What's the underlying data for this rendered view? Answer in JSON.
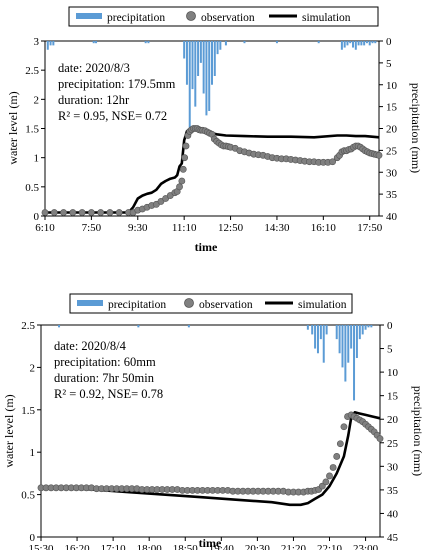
{
  "charts": [
    {
      "type": "line",
      "legend": [
        "precipitation",
        "observation",
        "simulation"
      ],
      "xlabel": "time",
      "ylabel_left": "water level (m)",
      "ylabel_right": "precipitation (mm)",
      "x_tick_labels": [
        "6:10",
        "7:50",
        "9:30",
        "11:10",
        "12:50",
        "14:30",
        "16:10",
        "17:50"
      ],
      "y_left_ticks": [
        "0",
        "0.5",
        "1",
        "1.5",
        "2",
        "2.5",
        "3"
      ],
      "y_right_ticks": [
        "0",
        "5",
        "10",
        "15",
        "20",
        "25",
        "30",
        "35",
        "40"
      ],
      "annotation": {
        "date": "date: 2020/8/3",
        "precipitation": "precipitation: 179.5mm",
        "duration": "duration: 12hr",
        "metrics": "R² = 0.95, NSE= 0.72"
      },
      "x_range_minutes": [
        370,
        1090
      ],
      "x_ticks_minutes": [
        370,
        470,
        570,
        670,
        770,
        870,
        970,
        1070
      ],
      "ylim_left": [
        0,
        3
      ],
      "ylim_right": [
        0,
        40
      ],
      "colors": {
        "precipitation": "#5b9bd5",
        "observation": "#808080",
        "simulation": "#000000"
      },
      "precipitation": {
        "t": [
          376,
          382,
          388,
          475,
          480,
          587,
          593,
          670,
          676,
          682,
          688,
          694,
          700,
          706,
          712,
          718,
          724,
          730,
          736,
          742,
          748,
          760,
          800,
          870,
          960,
          1010,
          1016,
          1022,
          1028,
          1034,
          1040,
          1046,
          1052,
          1058,
          1064,
          1070,
          1076,
          1082
        ],
        "v": [
          2,
          1,
          1,
          0.5,
          0.5,
          0.5,
          0.5,
          4,
          10,
          20,
          11,
          15,
          8,
          5,
          12,
          17,
          16,
          10,
          8,
          3,
          2,
          1,
          0.5,
          0.5,
          0.5,
          2,
          1.5,
          1,
          0.5,
          1.5,
          2,
          1,
          1,
          1,
          0.5,
          1,
          0.5,
          0.5
        ]
      },
      "observation": {
        "t": [
          370,
          850,
          870,
          900,
          940,
          980,
          1000,
          1010,
          1030,
          1050,
          1070,
          1090
        ],
        "v": [
          0.06,
          0.06,
          0.5,
          1.3,
          1.3,
          1.5,
          1.3,
          0.9,
          0.9,
          1.15,
          1.1,
          1.05
        ],
        "notes": "observation shown as dense circular markers"
      },
      "observation_points": {
        "t": [
          370,
          390,
          410,
          430,
          450,
          470,
          490,
          510,
          530,
          550,
          560,
          570,
          580,
          590,
          600,
          610,
          620,
          630,
          640,
          650,
          655,
          660,
          665,
          668,
          671,
          674,
          678,
          682,
          686,
          690,
          694,
          698,
          702,
          706,
          710,
          715,
          720,
          725,
          730,
          735,
          740,
          745,
          750,
          755,
          760,
          765,
          770,
          780,
          790,
          800,
          810,
          820,
          830,
          840,
          850,
          860,
          870,
          880,
          890,
          900,
          910,
          920,
          930,
          940,
          950,
          960,
          970,
          980,
          990,
          1000,
          1005,
          1010,
          1015,
          1020,
          1025,
          1030,
          1035,
          1040,
          1045,
          1050,
          1055,
          1060,
          1065,
          1070,
          1075,
          1080,
          1085,
          1090
        ],
        "v": [
          0.06,
          0.06,
          0.06,
          0.06,
          0.06,
          0.06,
          0.06,
          0.06,
          0.06,
          0.06,
          0.06,
          0.1,
          0.12,
          0.15,
          0.18,
          0.2,
          0.25,
          0.3,
          0.35,
          0.4,
          0.42,
          0.5,
          0.6,
          0.8,
          1.0,
          1.2,
          1.38,
          1.45,
          1.48,
          1.5,
          1.5,
          1.5,
          1.48,
          1.47,
          1.47,
          1.46,
          1.44,
          1.42,
          1.4,
          1.32,
          1.28,
          1.25,
          1.22,
          1.2,
          1.2,
          1.19,
          1.18,
          1.16,
          1.12,
          1.1,
          1.08,
          1.06,
          1.05,
          1.04,
          1.02,
          1.0,
          0.99,
          0.98,
          0.98,
          0.97,
          0.96,
          0.95,
          0.94,
          0.93,
          0.93,
          0.92,
          0.92,
          0.92,
          0.93,
          1.0,
          1.04,
          1.1,
          1.12,
          1.12,
          1.14,
          1.15,
          1.18,
          1.2,
          1.2,
          1.18,
          1.15,
          1.12,
          1.1,
          1.08,
          1.07,
          1.06,
          1.05,
          1.04
        ]
      },
      "simulation": {
        "t": [
          370,
          550,
          560,
          570,
          580,
          590,
          600,
          610,
          620,
          630,
          640,
          650,
          655,
          660,
          665,
          670,
          676,
          680,
          686,
          690,
          700,
          710,
          720,
          730,
          740,
          760,
          800,
          850,
          900,
          950,
          1000,
          1020,
          1040,
          1060,
          1090
        ],
        "v": [
          0.06,
          0.06,
          0.15,
          0.3,
          0.35,
          0.38,
          0.4,
          0.45,
          0.55,
          0.6,
          0.64,
          0.66,
          0.7,
          0.85,
          0.9,
          1.3,
          1.45,
          1.48,
          1.5,
          1.5,
          1.5,
          1.48,
          1.45,
          1.42,
          1.4,
          1.38,
          1.37,
          1.36,
          1.36,
          1.35,
          1.38,
          1.38,
          1.37,
          1.37,
          1.35
        ]
      }
    },
    {
      "type": "line",
      "legend": [
        "precipitation",
        "observation",
        "simulation"
      ],
      "xlabel": "time",
      "ylabel_left": "water level (m)",
      "ylabel_right": "precipitation (mm)",
      "x_tick_labels": [
        "15:30",
        "16:20",
        "17:10",
        "18:00",
        "18:50",
        "19:40",
        "20:30",
        "21:20",
        "22:10",
        "23:00"
      ],
      "y_left_ticks": [
        "0",
        "0.5",
        "1",
        "1.5",
        "2",
        "2.5"
      ],
      "y_right_ticks": [
        "0",
        "5",
        "10",
        "15",
        "20",
        "25",
        "30",
        "35",
        "40",
        "45"
      ],
      "annotation": {
        "date": "date: 2020/8/4",
        "precipitation": "precipitation:  60mm",
        "duration": "duration:  7hr 50min",
        "metrics": "R² = 0.92, NSE= 0.78"
      },
      "x_range_minutes": [
        930,
        1400
      ],
      "x_ticks_minutes": [
        930,
        980,
        1030,
        1080,
        1130,
        1180,
        1230,
        1280,
        1330,
        1380
      ],
      "ylim_left": [
        0,
        2.5
      ],
      "ylim_right": [
        0,
        45
      ],
      "colors": {
        "precipitation": "#5b9bd5",
        "observation": "#808080",
        "simulation": "#000000"
      },
      "precipitation": {
        "t": [
          955,
          1065,
          1135,
          1300,
          1306,
          1310,
          1314,
          1318,
          1322,
          1326,
          1340,
          1344,
          1348,
          1352,
          1356,
          1360,
          1364,
          1368,
          1372,
          1376,
          1380,
          1384,
          1388
        ],
        "v": [
          0.5,
          0.5,
          0.5,
          1,
          2,
          5,
          6,
          3,
          8,
          2,
          3,
          6,
          9,
          12,
          8,
          5,
          16,
          7,
          3,
          2,
          1,
          0.5,
          0.5
        ]
      },
      "observation_points": {
        "t": [
          930,
          937,
          944,
          951,
          958,
          965,
          972,
          979,
          986,
          993,
          1000,
          1007,
          1014,
          1021,
          1028,
          1035,
          1042,
          1049,
          1056,
          1063,
          1070,
          1077,
          1084,
          1091,
          1098,
          1105,
          1112,
          1119,
          1126,
          1133,
          1140,
          1147,
          1154,
          1161,
          1168,
          1175,
          1182,
          1189,
          1196,
          1203,
          1210,
          1217,
          1224,
          1231,
          1238,
          1245,
          1252,
          1259,
          1266,
          1273,
          1280,
          1287,
          1294,
          1300,
          1305,
          1310,
          1315,
          1320,
          1325,
          1330,
          1335,
          1340,
          1345,
          1350,
          1355,
          1360,
          1364,
          1368,
          1372,
          1376,
          1380,
          1384,
          1388,
          1392,
          1396,
          1400
        ],
        "v": [
          0.58,
          0.58,
          0.58,
          0.58,
          0.58,
          0.58,
          0.58,
          0.58,
          0.58,
          0.58,
          0.58,
          0.57,
          0.57,
          0.57,
          0.57,
          0.57,
          0.57,
          0.57,
          0.57,
          0.57,
          0.56,
          0.56,
          0.56,
          0.56,
          0.56,
          0.56,
          0.56,
          0.56,
          0.55,
          0.55,
          0.55,
          0.55,
          0.55,
          0.55,
          0.55,
          0.55,
          0.55,
          0.55,
          0.54,
          0.54,
          0.54,
          0.54,
          0.54,
          0.54,
          0.54,
          0.54,
          0.54,
          0.54,
          0.54,
          0.53,
          0.53,
          0.53,
          0.53,
          0.54,
          0.54,
          0.55,
          0.56,
          0.6,
          0.65,
          0.72,
          0.82,
          0.95,
          1.1,
          1.3,
          1.42,
          1.44,
          1.42,
          1.4,
          1.38,
          1.36,
          1.33,
          1.3,
          1.27,
          1.24,
          1.2,
          1.16
        ]
      },
      "simulation": {
        "t": [
          930,
          1000,
          1050,
          1100,
          1150,
          1200,
          1250,
          1275,
          1290,
          1300,
          1310,
          1320,
          1330,
          1340,
          1350,
          1356,
          1360,
          1365,
          1370,
          1380,
          1390,
          1400
        ],
        "v": [
          0.58,
          0.56,
          0.53,
          0.5,
          0.47,
          0.44,
          0.41,
          0.38,
          0.38,
          0.4,
          0.45,
          0.5,
          0.6,
          0.75,
          0.95,
          1.2,
          1.4,
          1.47,
          1.46,
          1.44,
          1.42,
          1.4
        ]
      }
    }
  ]
}
